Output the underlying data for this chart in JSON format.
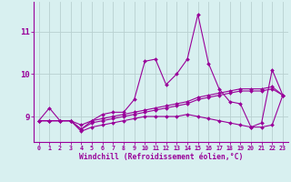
{
  "x": [
    0,
    1,
    2,
    3,
    4,
    5,
    6,
    7,
    8,
    9,
    10,
    11,
    12,
    13,
    14,
    15,
    16,
    17,
    18,
    19,
    20,
    21,
    22,
    23
  ],
  "line1": [
    8.9,
    9.2,
    8.9,
    8.9,
    8.7,
    8.9,
    9.05,
    9.1,
    9.1,
    9.4,
    10.3,
    10.35,
    9.75,
    10.0,
    10.35,
    11.4,
    10.25,
    9.65,
    9.35,
    9.3,
    8.75,
    8.85,
    10.1,
    9.5
  ],
  "line2": [
    8.9,
    8.9,
    8.9,
    8.9,
    8.8,
    8.9,
    8.95,
    9.0,
    9.05,
    9.1,
    9.15,
    9.2,
    9.25,
    9.3,
    9.35,
    9.45,
    9.5,
    9.55,
    9.6,
    9.65,
    9.65,
    9.65,
    9.7,
    9.5
  ],
  "line3": [
    8.9,
    8.9,
    8.9,
    8.9,
    8.7,
    8.85,
    8.9,
    8.95,
    9.0,
    9.05,
    9.1,
    9.15,
    9.2,
    9.25,
    9.3,
    9.4,
    9.45,
    9.5,
    9.55,
    9.6,
    9.6,
    9.6,
    9.65,
    9.5
  ],
  "line4": [
    8.9,
    8.9,
    8.9,
    8.9,
    8.65,
    8.75,
    8.8,
    8.85,
    8.9,
    8.95,
    9.0,
    9.0,
    9.0,
    9.0,
    9.05,
    9.0,
    8.95,
    8.9,
    8.85,
    8.8,
    8.75,
    8.75,
    8.8,
    9.5
  ],
  "line_color": "#990099",
  "bg_color": "#d8f0f0",
  "grid_color": "#b8d0d0",
  "ylabel_vals": [
    9,
    10,
    11
  ],
  "xlim": [
    -0.5,
    23.5
  ],
  "ylim": [
    8.4,
    11.7
  ],
  "xlabel": "Windchill (Refroidissement éolien,°C)"
}
